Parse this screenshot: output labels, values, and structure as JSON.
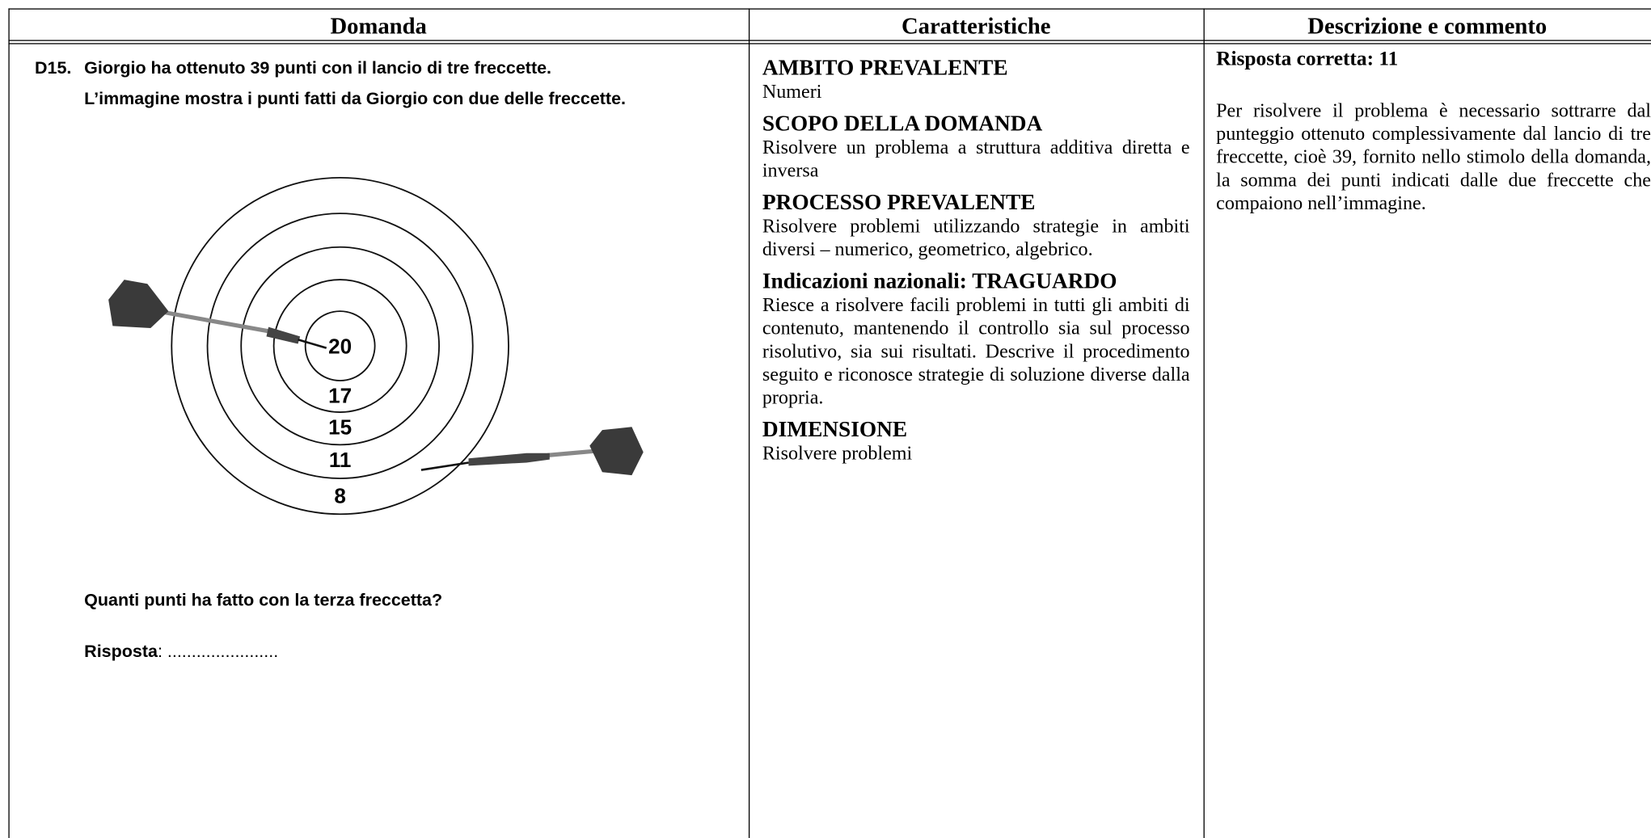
{
  "table": {
    "headers": [
      "Domanda",
      "Caratteristiche",
      "Descrizione e commento"
    ],
    "question": {
      "number": "D15.",
      "lines": [
        "Giorgio ha ottenuto 39 punti con il lancio di tre freccette.",
        "L’immagine mostra i punti fatti da Giorgio con due delle freccette."
      ],
      "target_labels": [
        "20",
        "17",
        "15",
        "11",
        "8"
      ],
      "prompt": "Quanti punti ha fatto con la terza freccetta?",
      "answer_label": "Risposta",
      "answer_blank": ": ......................."
    },
    "characteristics": [
      {
        "heading": "AMBITO PREVALENTE",
        "text": "Numeri"
      },
      {
        "heading": "SCOPO DELLA DOMANDA",
        "text": "Risolvere un problema a struttura additiva diretta e inversa"
      },
      {
        "heading": "PROCESSO PREVALENTE",
        "text": "Risolvere problemi utilizzando strategie in ambiti diversi – numerico, geometrico, algebrico."
      },
      {
        "heading": "Indicazioni nazionali: TRAGUARDO",
        "text": "Riesce a risolvere facili problemi in tutti gli ambiti di contenuto, mantenendo il controllo sia sul processo risolutivo, sia sui risultati. Descrive il procedimento seguito e riconosce strategie di soluzione diverse dalla propria."
      },
      {
        "heading": "DIMENSIONE",
        "text": "Risolvere problemi"
      }
    ],
    "description": {
      "answer": "Risposta corretta: 11",
      "text": "Per risolvere il problema è necessario sottrarre dal punteggio ottenuto complessivamente dal lancio di tre freccette, cioè 39, fornito nello stimolo della domanda, la somma dei punti indicati dalle due freccette che compaiono nell’immagine."
    }
  }
}
